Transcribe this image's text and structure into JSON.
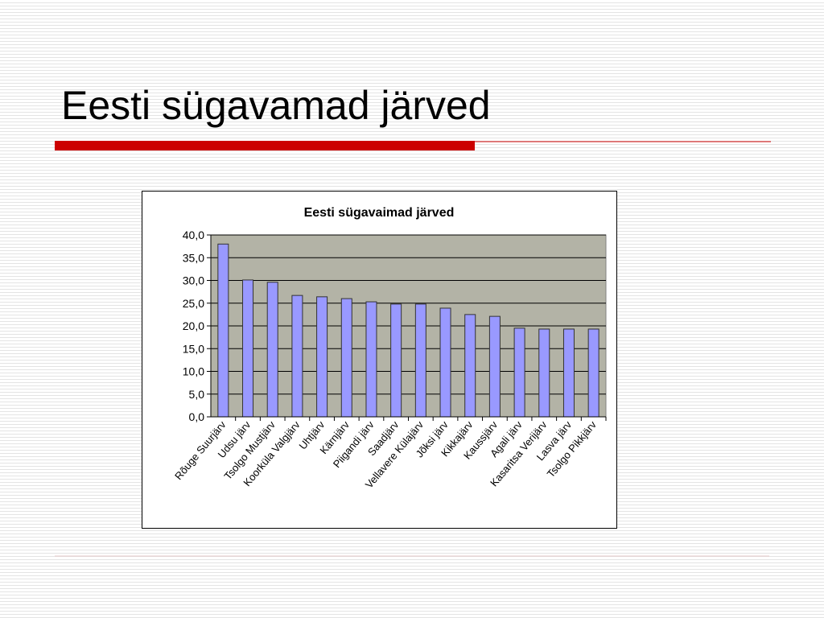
{
  "slide": {
    "title": "Eesti sügavamad järved"
  },
  "chart_data": {
    "type": "bar",
    "title": "Eesti sügavaimad järved",
    "categories": [
      "Rõuge Suurjärv",
      "Udsu järv",
      "Tsolgo Mustjärv",
      "Koorküla Valgjärv",
      "Uhtjärv",
      "Kärnjärv",
      "Piigandi järv",
      "Saadjärv",
      "Vellavere Külajärv",
      "Jõksi järv",
      "Kikkajärv",
      "Kaussjärv",
      "Agali järv",
      "Kasaritsa Verijärv",
      "Lasva järv",
      "Tsolgo Pikkjärv"
    ],
    "values": [
      38,
      30.1,
      29.6,
      26.7,
      26.4,
      26,
      25.3,
      24.8,
      24.8,
      23.9,
      22.5,
      22.1,
      19.5,
      19.3,
      19.3,
      19.3
    ],
    "color": "#9999ff",
    "ylim": [
      0,
      40
    ],
    "yticks": [
      {
        "value": 0,
        "label": "0,0"
      },
      {
        "value": 5,
        "label": "5,0"
      },
      {
        "value": 10,
        "label": "10,0"
      },
      {
        "value": 15,
        "label": "15,0"
      },
      {
        "value": 20,
        "label": "20,0"
      },
      {
        "value": 25,
        "label": "25,0"
      },
      {
        "value": 30,
        "label": "30,0"
      },
      {
        "value": 35,
        "label": "35,0"
      },
      {
        "value": 40,
        "label": "40,0"
      }
    ],
    "grid": true
  }
}
